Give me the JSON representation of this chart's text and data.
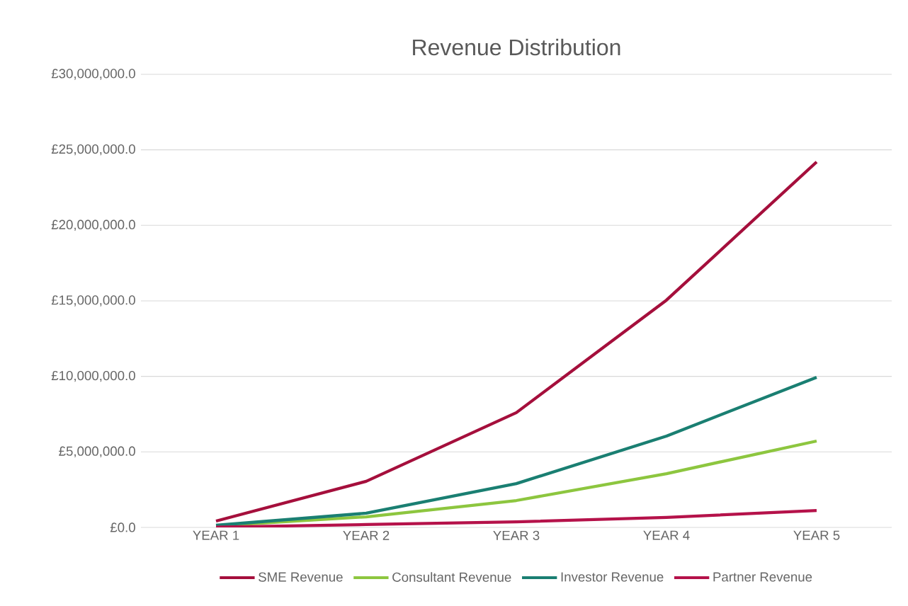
{
  "chart_data": {
    "type": "line",
    "title": "Revenue Distribution",
    "categories": [
      "YEAR 1",
      "YEAR 2",
      "YEAR 3",
      "YEAR 4",
      "YEAR 5"
    ],
    "series": [
      {
        "name": "SME Revenue",
        "color": "#a50f3c",
        "values": [
          420000,
          3050000,
          7600000,
          15050000,
          24200000
        ]
      },
      {
        "name": "Consultant Revenue",
        "color": "#8dc63f",
        "values": [
          100000,
          700000,
          1780000,
          3560000,
          5720000
        ]
      },
      {
        "name": "Investor Revenue",
        "color": "#1a7f72",
        "values": [
          140000,
          940000,
          2900000,
          6050000,
          9940000
        ]
      },
      {
        "name": "Partner Revenue",
        "color": "#b5124a",
        "values": [
          20000,
          190000,
          370000,
          660000,
          1120000
        ]
      }
    ],
    "ylim": [
      0,
      30000000
    ],
    "yticks": [
      {
        "value": 0,
        "label": "£0.0"
      },
      {
        "value": 5000000,
        "label": "£5,000,000.0"
      },
      {
        "value": 10000000,
        "label": "£10,000,000.0"
      },
      {
        "value": 15000000,
        "label": "£15,000,000.0"
      },
      {
        "value": 20000000,
        "label": "£20,000,000.0"
      },
      {
        "value": 25000000,
        "label": "£25,000,000.0"
      },
      {
        "value": 30000000,
        "label": "£30,000,000.0"
      }
    ],
    "grid": "y",
    "legend": "bottom",
    "marker": "none",
    "line_style": "solid"
  }
}
